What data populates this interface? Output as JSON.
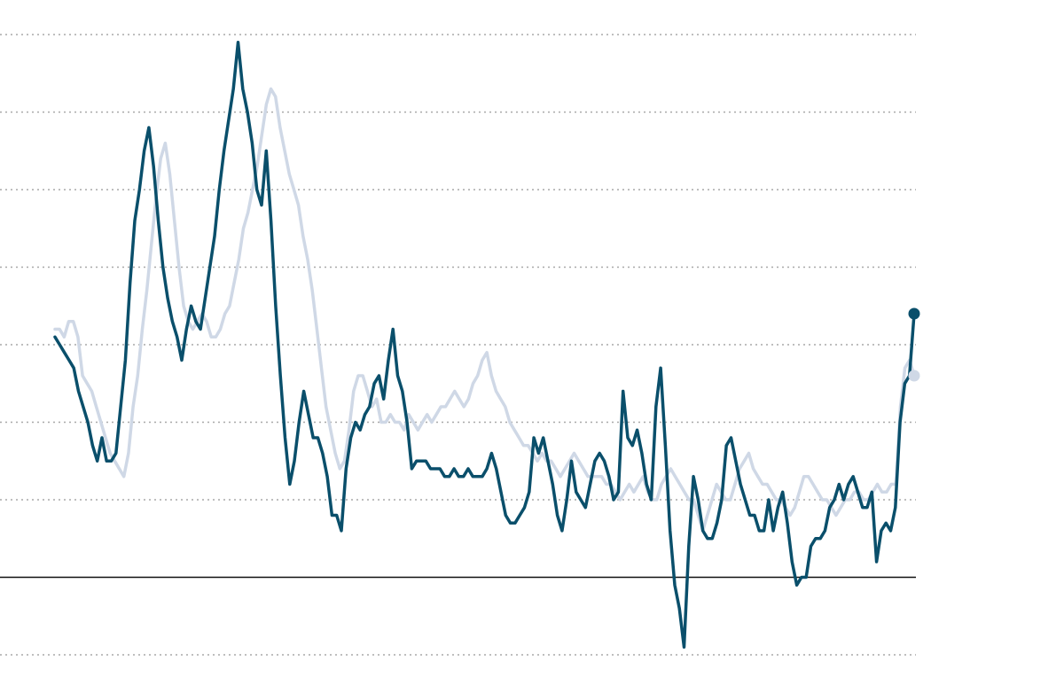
{
  "chart_data": {
    "type": "line",
    "title": "",
    "xlabel": "",
    "ylabel": "",
    "ylim": [
      -1,
      7
    ],
    "yticks": [
      -1,
      1,
      2,
      3,
      4,
      5,
      6,
      7
    ],
    "baseline": 0,
    "grid": true,
    "legend": "none",
    "series": [
      {
        "color": "#cfd8e6",
        "values": [
          3.2,
          3.2,
          3.1,
          3.3,
          3.3,
          3.1,
          2.6,
          2.5,
          2.4,
          2.2,
          2.0,
          1.8,
          1.6,
          1.5,
          1.4,
          1.3,
          1.6,
          2.2,
          2.6,
          3.2,
          3.7,
          4.3,
          4.9,
          5.4,
          5.6,
          5.2,
          4.6,
          4.0,
          3.5,
          3.3,
          3.2,
          3.3,
          3.4,
          3.3,
          3.1,
          3.1,
          3.2,
          3.4,
          3.5,
          3.8,
          4.1,
          4.5,
          4.7,
          5.0,
          5.3,
          5.7,
          6.1,
          6.3,
          6.2,
          5.8,
          5.5,
          5.2,
          5.0,
          4.8,
          4.4,
          4.1,
          3.7,
          3.2,
          2.7,
          2.2,
          1.9,
          1.6,
          1.4,
          1.5,
          1.9,
          2.4,
          2.6,
          2.6,
          2.4,
          2.2,
          2.3,
          2.0,
          2.0,
          2.1,
          2.0,
          2.0,
          1.9,
          2.1,
          2.0,
          1.9,
          2.0,
          2.1,
          2.0,
          2.1,
          2.2,
          2.2,
          2.3,
          2.4,
          2.3,
          2.2,
          2.3,
          2.5,
          2.6,
          2.8,
          2.9,
          2.6,
          2.4,
          2.3,
          2.2,
          2.0,
          1.9,
          1.8,
          1.7,
          1.7,
          1.6,
          1.5,
          1.6,
          1.5,
          1.5,
          1.4,
          1.3,
          1.4,
          1.5,
          1.6,
          1.5,
          1.4,
          1.3,
          1.3,
          1.3,
          1.3,
          1.2,
          1.2,
          1.1,
          1.0,
          1.1,
          1.2,
          1.1,
          1.2,
          1.3,
          1.1,
          1.0,
          1.0,
          1.2,
          1.3,
          1.4,
          1.3,
          1.2,
          1.1,
          1.0,
          1.0,
          0.8,
          0.6,
          0.8,
          1.0,
          1.2,
          1.1,
          1.0,
          1.0,
          1.2,
          1.4,
          1.5,
          1.6,
          1.4,
          1.3,
          1.2,
          1.2,
          1.1,
          1.0,
          1.0,
          0.9,
          0.8,
          0.9,
          1.1,
          1.3,
          1.3,
          1.2,
          1.1,
          1.0,
          1.0,
          0.9,
          0.8,
          0.9,
          1.0,
          1.0,
          1.1,
          1.1,
          1.0,
          1.0,
          1.1,
          1.2,
          1.1,
          1.1,
          1.2,
          1.2,
          2.2,
          2.7,
          2.8,
          2.6
        ]
      },
      {
        "color": "#0a4f6b",
        "values": [
          3.1,
          3.0,
          2.9,
          2.8,
          2.7,
          2.4,
          2.2,
          2.0,
          1.7,
          1.5,
          1.8,
          1.5,
          1.5,
          1.6,
          2.2,
          2.8,
          3.8,
          4.6,
          5.0,
          5.5,
          5.8,
          5.3,
          4.6,
          4.0,
          3.6,
          3.3,
          3.1,
          2.8,
          3.2,
          3.5,
          3.3,
          3.2,
          3.6,
          4.0,
          4.4,
          5.0,
          5.5,
          5.9,
          6.3,
          6.9,
          6.3,
          6.0,
          5.6,
          5.0,
          4.8,
          5.5,
          4.6,
          3.5,
          2.6,
          1.8,
          1.2,
          1.5,
          2.0,
          2.4,
          2.1,
          1.8,
          1.8,
          1.6,
          1.3,
          0.8,
          0.8,
          0.6,
          1.4,
          1.8,
          2.0,
          1.9,
          2.1,
          2.2,
          2.5,
          2.6,
          2.3,
          2.8,
          3.2,
          2.6,
          2.4,
          2.0,
          1.4,
          1.5,
          1.5,
          1.5,
          1.4,
          1.4,
          1.4,
          1.3,
          1.3,
          1.4,
          1.3,
          1.3,
          1.4,
          1.3,
          1.3,
          1.3,
          1.4,
          1.6,
          1.4,
          1.1,
          0.8,
          0.7,
          0.7,
          0.8,
          0.9,
          1.1,
          1.8,
          1.6,
          1.8,
          1.5,
          1.2,
          0.8,
          0.6,
          1.0,
          1.5,
          1.1,
          1.0,
          0.9,
          1.2,
          1.5,
          1.6,
          1.5,
          1.3,
          1.0,
          1.1,
          2.4,
          1.8,
          1.7,
          1.9,
          1.6,
          1.2,
          1.0,
          2.2,
          2.7,
          1.7,
          0.6,
          -0.1,
          -0.4,
          -0.9,
          0.4,
          1.3,
          1.0,
          0.6,
          0.5,
          0.5,
          0.7,
          1.0,
          1.7,
          1.8,
          1.5,
          1.2,
          1.0,
          0.8,
          0.8,
          0.6,
          0.6,
          1.0,
          0.6,
          0.9,
          1.1,
          0.7,
          0.2,
          -0.1,
          0.0,
          0.0,
          0.4,
          0.5,
          0.5,
          0.6,
          0.9,
          1.0,
          1.2,
          1.0,
          1.2,
          1.3,
          1.1,
          0.9,
          0.9,
          1.1,
          0.2,
          0.6,
          0.7,
          0.6,
          0.9,
          2.0,
          2.5,
          2.6,
          3.4
        ]
      }
    ]
  }
}
